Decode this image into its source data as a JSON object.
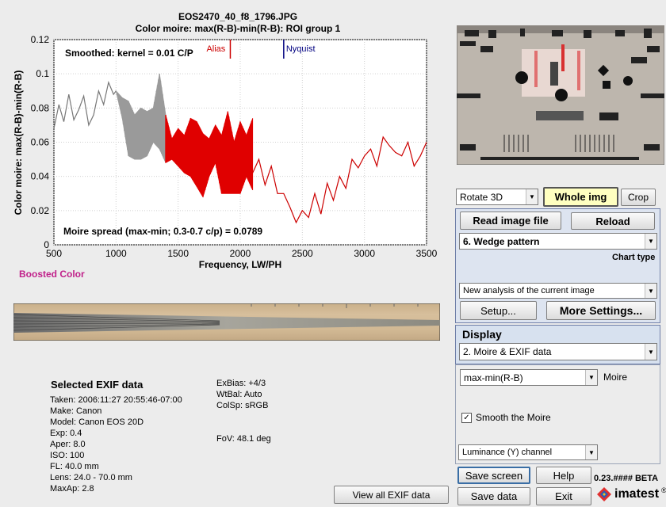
{
  "header": {
    "filename": "EOS2470_40_f8_1796.JPG",
    "subtitle": "Color moire:  max(R-B)-min(R-B):  ROI group 1"
  },
  "chart_data": {
    "type": "line",
    "title": "EOS2470_40_f8_1796.JPG",
    "xlabel": "Frequency, LW/PH",
    "ylabel": "Color moire:  max(R-B)-min(R-B)",
    "xlim": [
      500,
      3500
    ],
    "ylim": [
      0,
      0.12
    ],
    "xticks": [
      "500",
      "1000",
      "1500",
      "2000",
      "2500",
      "3000",
      "3500"
    ],
    "yticks": [
      "0",
      "0.02",
      "0.04",
      "0.06",
      "0.08",
      "0.1",
      "0.12"
    ],
    "smoothed_label": "Smoothed:  kernel = 0.01 C/P",
    "moire_spread_label": "Moire spread (max-min; 0.3-0.7 c/p) = 0.0789",
    "alias": {
      "label": "Alias",
      "x": 1920,
      "color": "#cc0000"
    },
    "nyquist": {
      "label": "Nyquist",
      "x": 2350,
      "color": "#000080"
    },
    "grid": true,
    "series": [
      {
        "segment": "gray-line",
        "color": "#777777",
        "x": [
          500,
          540,
          580,
          620,
          660,
          700,
          740,
          780,
          820,
          860,
          900,
          940,
          980,
          1000
        ],
        "y": [
          0.068,
          0.082,
          0.072,
          0.088,
          0.073,
          0.079,
          0.087,
          0.07,
          0.076,
          0.09,
          0.082,
          0.095,
          0.088,
          0.09
        ]
      },
      {
        "segment": "gray-band",
        "color": "#9a9a9a",
        "x": [
          1000,
          1050,
          1100,
          1150,
          1200,
          1250,
          1300,
          1350,
          1400
        ],
        "lower": [
          0.09,
          0.074,
          0.052,
          0.05,
          0.05,
          0.052,
          0.06,
          0.056,
          0.048
        ],
        "upper": [
          0.09,
          0.086,
          0.084,
          0.076,
          0.08,
          0.078,
          0.08,
          0.1,
          0.076
        ]
      },
      {
        "segment": "red-band",
        "color": "#e00000",
        "x": [
          1400,
          1450,
          1500,
          1550,
          1600,
          1650,
          1700,
          1750,
          1800,
          1850,
          1900,
          1950,
          2000,
          2050,
          2100
        ],
        "lower": [
          0.048,
          0.05,
          0.046,
          0.042,
          0.04,
          0.034,
          0.028,
          0.04,
          0.048,
          0.03,
          0.03,
          0.03,
          0.03,
          0.04,
          0.032
        ],
        "upper": [
          0.076,
          0.062,
          0.068,
          0.064,
          0.074,
          0.072,
          0.065,
          0.062,
          0.07,
          0.064,
          0.078,
          0.06,
          0.072,
          0.064,
          0.074
        ]
      },
      {
        "segment": "red-line",
        "color": "#cc0000",
        "x": [
          2100,
          2150,
          2200,
          2250,
          2300,
          2350,
          2400,
          2450,
          2500,
          2550,
          2600,
          2650,
          2700,
          2750,
          2800,
          2850,
          2900,
          2950,
          3000,
          3050,
          3100,
          3150,
          3200,
          3250,
          3300,
          3350,
          3400,
          3450,
          3500
        ],
        "y": [
          0.042,
          0.05,
          0.035,
          0.046,
          0.03,
          0.03,
          0.022,
          0.013,
          0.02,
          0.016,
          0.03,
          0.018,
          0.036,
          0.026,
          0.04,
          0.033,
          0.05,
          0.045,
          0.052,
          0.056,
          0.046,
          0.063,
          0.058,
          0.054,
          0.052,
          0.06,
          0.046,
          0.052,
          0.06
        ]
      }
    ]
  },
  "boosted_label": "Boosted Color",
  "exif": {
    "heading": "Selected EXIF data",
    "col1": [
      "Taken: 2006:11:27 20:55:46-07:00",
      "Make:  Canon",
      "Model: Canon EOS 20D",
      "Exp:   0.4",
      "Aper:  8.0",
      "ISO:   100",
      "FL:  40.0 mm",
      "Lens:  24.0 - 70.0 mm",
      "MaxAp: 2.8"
    ],
    "col2": [
      "ExBias: +4/3",
      "WtBal: Auto",
      "ColSp: sRGB"
    ],
    "fov": "FoV:   48.1 deg",
    "view_all_button": "View all EXIF data"
  },
  "controls": {
    "rotate_select": "Rotate 3D",
    "whole_img_button": "Whole img",
    "crop_button": "Crop",
    "read_image_button": "Read image file",
    "reload_button": "Reload",
    "chart_type_select": "6. Wedge pattern",
    "chart_type_label": "Chart type",
    "analysis_select": "New analysis of the current image",
    "setup_button": "Setup...",
    "more_settings_button": "More Settings...",
    "display_label": "Display",
    "display_select": "2. Moire & EXIF data",
    "moire_select": "max-min(R-B)",
    "moire_label": "Moire",
    "smooth_checkbox_label": "Smooth the Moire",
    "smooth_checked": true,
    "channel_select": "Luminance (Y) channel",
    "save_screen_button": "Save screen",
    "help_button": "Help",
    "save_data_button": "Save data",
    "exit_button": "Exit",
    "version": "0.23.#### BETA",
    "logo": "imatest",
    "logo_reg": "®"
  },
  "colors": {
    "accent_yellow": "#ffffc0",
    "panel_blue": "#dde4f0",
    "display_panel": "#d7e1ef"
  }
}
